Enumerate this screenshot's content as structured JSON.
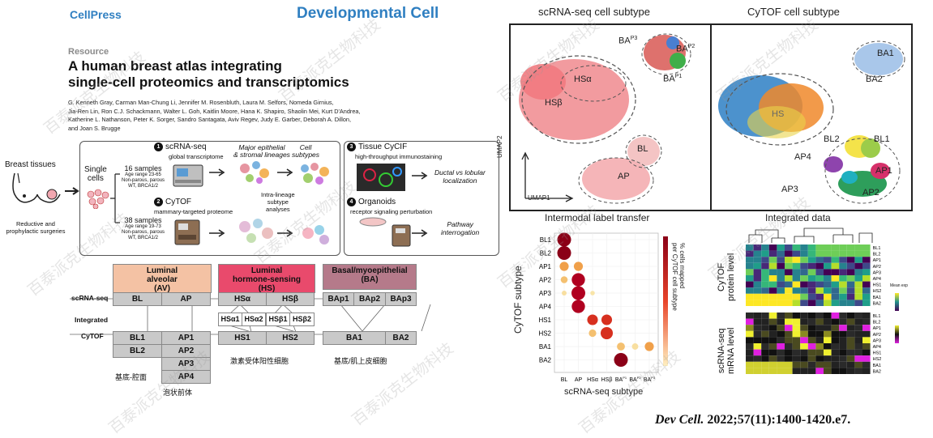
{
  "header": {
    "publisher": "CellPress",
    "journal": "Developmental Cell"
  },
  "paper": {
    "type": "Resource",
    "title_line1": "A human breast atlas integrating",
    "title_line2": "single-cell proteomics and transcriptomics",
    "authors_l1": "G. Kenneth Gray, Carman Man-Chung Li, Jennifer M. Rosenbluth, Laura M. Selfors, Nomeda Girnius,",
    "authors_l2": "Jia-Ren Lin, Ron C.J. Schackmann, Walter L. Goh, Kaitlin Moore, Hana K. Shapiro, Shaolin Mei, Kurt D'Andrea,",
    "authors_l3": "Katherine L. Nathanson, Peter K. Sorger, Sandro Santagata, Aviv Regev, Judy E. Garber, Deborah A. Dillon,",
    "authors_l4": "and Joan S. Brugge"
  },
  "abstract": {
    "breast_tissues": "Breast tissues",
    "reductive_l1": "Reductive and",
    "reductive_l2": "prophylactic surgeries",
    "single": "Single",
    "cells": "cells",
    "n1": "1",
    "scrna": "scRNA-seq",
    "global": "global transcriptome",
    "s16": "16 samples",
    "s16_age": "Age range 23-65",
    "s16_np": "Non-parous, parous",
    "s16_wt": "WT, BRCA1/2",
    "major_l1": "Major epithelial",
    "major_l2": "& stromal lineages",
    "cell_l1": "Cell",
    "cell_l2": "subtypes",
    "n2": "2",
    "cytof": "CyTOF",
    "mammary": "mammary-targeted proteome",
    "intra_l1": "Intra-lineage",
    "intra_l2": "subtype",
    "intra_l3": "analyses",
    "s38": "38 samples",
    "s38_age": "Age range 19-73",
    "s38_np": "Non-parous, parous",
    "s38_wt": "WT, BRCA1/2",
    "n3": "3",
    "tissue": "Tissue CyCIF",
    "high": "high-throughput immunostaining",
    "ductal_l1": "Ductal vs lobular",
    "ductal_l2": "localization",
    "n4": "4",
    "organoids": "Organoids",
    "receptor": "receptor signaling perturbation",
    "pathway_l1": "Pathway",
    "pathway_l2": "interrogation"
  },
  "hierarchy": {
    "av_l1": "Luminal",
    "av_l2": "alveolar",
    "av_l3": "(AV)",
    "hs_l1": "Luminal",
    "hs_l2": "hormone-sensing",
    "hs_l3": "(HS)",
    "ba_l1": "Basal/myoepithelial",
    "ba_l2": "(BA)",
    "row_scrna": "scRNA-seq",
    "row_integrated": "Integrated",
    "row_cytof": "CyTOF",
    "bl": "BL",
    "ap": "AP",
    "hsa": "HSα",
    "hsb": "HSβ",
    "bap1": "BAp1",
    "bap2": "BAp2",
    "bap3": "BAp3",
    "hsa1": "HSα1",
    "hsa2": "HSα2",
    "hsb1": "HSβ1",
    "hsb2": "HSβ2",
    "bl1": "BL1",
    "bl2": "BL2",
    "ap1": "AP1",
    "ap2": "AP2",
    "ap3": "AP3",
    "ap4": "AP4",
    "hs1": "HS1",
    "hs2": "HS2",
    "ba1": "BA1",
    "ba2": "BA2",
    "cn_av_1": "基底-腔面",
    "cn_av_2": "泡状前体",
    "cn_hs": "激素受体阳性细胞",
    "cn_ba": "基底/肌上皮细胞"
  },
  "umap": {
    "title_scrna": "scRNA-seq cell subtype",
    "title_cytof": "CyTOF cell subtype",
    "umap1": "UMAP1",
    "umap2": "UMAP2",
    "l_bap3": "BA",
    "l_bap3_sup": "P3",
    "l_bap2": "BA",
    "l_bap2_sup": "P2",
    "l_bap1": "BA",
    "l_bap1_sup": "P1",
    "l_hsa": "HSα",
    "l_hsb": "HSβ",
    "l_bl": "BL",
    "l_ap": "AP",
    "c_ba1": "BA1",
    "c_ba2": "BA2",
    "c_hs": "HS",
    "c_bl2": "BL2",
    "c_bl1": "BL1",
    "c_ap4": "AP4",
    "c_ap1": "AP1",
    "c_ap3": "AP3",
    "c_ap2": "AP2"
  },
  "transfer": {
    "title": "Intermodal label transfer",
    "ylabel": "CyTOF subtype",
    "xlabel": "scRNA-seq subtype",
    "legend_l1": "% cells mapped",
    "legend_l2": "per CyTOF cell subtype",
    "rows": [
      "BL1",
      "BL2",
      "AP1",
      "AP2",
      "AP3",
      "AP4",
      "HS1",
      "HS2",
      "BA1",
      "BA2"
    ],
    "cols": [
      "BL",
      "AP",
      "HSα",
      "HSβ",
      "BA",
      "BA",
      "BA"
    ],
    "col_sup": [
      "",
      "",
      "",
      "",
      "P1",
      "P2",
      "P3"
    ]
  },
  "integrated": {
    "title": "Integrated data",
    "cytof_l1": "CyTOF",
    "cytof_l2": "protein level",
    "scrna_l1": "scRNA-seq",
    "scrna_l2": "mRNA level",
    "rows": [
      "BL1",
      "BL2",
      "AP1",
      "AP2",
      "AP3",
      "AP4",
      "HS1",
      "HS2",
      "BA1",
      "BA2"
    ],
    "legend_title": "Mean exp"
  },
  "citation": {
    "journal": "Dev Cell.",
    "rest": " 2022;57(11):1400-1420.e7."
  },
  "watermark": "百泰派克生物科技"
}
